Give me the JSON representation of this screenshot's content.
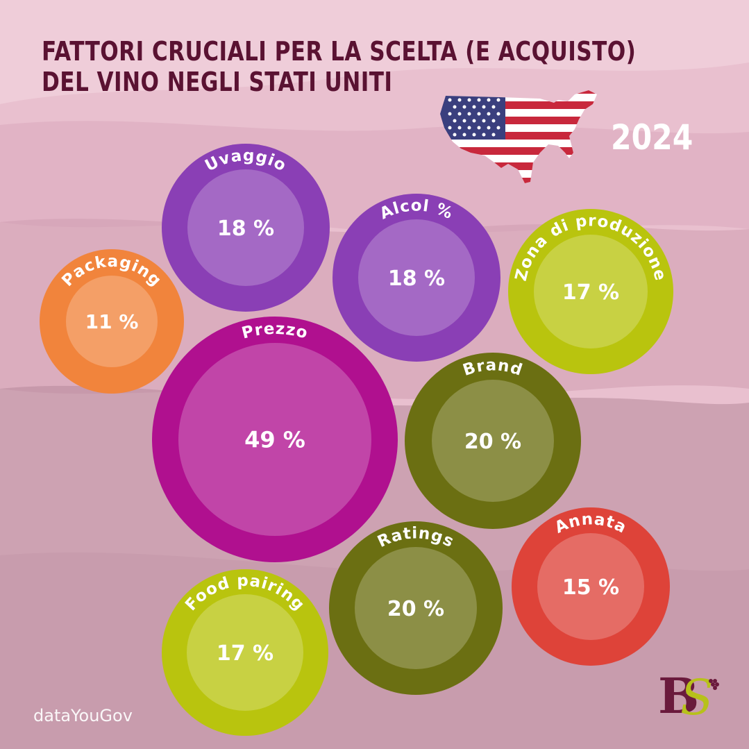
{
  "header": {
    "title_line1": "FATTORI CRUCIALI PER LA SCELTA (E ACQUISTO)",
    "title_line2": "DEL VINO NEGLI STATI UNITI",
    "year": "2024"
  },
  "source": "dataYouGov",
  "logo_text": "BS",
  "icons": [
    "usa-flag-map-icon",
    "grape-logo-icon"
  ],
  "colors": {
    "title": "#5a1232",
    "background": "#e8bccb",
    "purple": "#8a3fb5",
    "magenta": "#b0108f",
    "lime": "#b9c40e",
    "olive": "#6b6f12",
    "orange": "#f1843c",
    "red": "#de4339"
  },
  "chart_data": {
    "type": "bubble",
    "title": "FATTORI CRUCIALI PER LA SCELTA (E ACQUISTO) DEL VINO NEGLI STATI UNITI",
    "unit": "%",
    "series": [
      {
        "label": "Uvaggio",
        "value": 18,
        "value_label": "18 %",
        "color": "#8a3fb5"
      },
      {
        "label": "Alcol %",
        "value": 18,
        "value_label": "18 %",
        "color": "#8a3fb5"
      },
      {
        "label": "Zona di produzione",
        "value": 17,
        "value_label": "17 %",
        "color": "#b9c40e"
      },
      {
        "label": "Packaging",
        "value": 11,
        "value_label": "11 %",
        "color": "#f1843c"
      },
      {
        "label": "Prezzo",
        "value": 49,
        "value_label": "49 %",
        "color": "#b0108f"
      },
      {
        "label": "Brand",
        "value": 20,
        "value_label": "20 %",
        "color": "#6b6f12"
      },
      {
        "label": "Annata",
        "value": 15,
        "value_label": "15 %",
        "color": "#de4339"
      },
      {
        "label": "Ratings",
        "value": 20,
        "value_label": "20 %",
        "color": "#6b6f12"
      },
      {
        "label": "Food pairing",
        "value": 17,
        "value_label": "17 %",
        "color": "#b9c40e"
      }
    ]
  }
}
